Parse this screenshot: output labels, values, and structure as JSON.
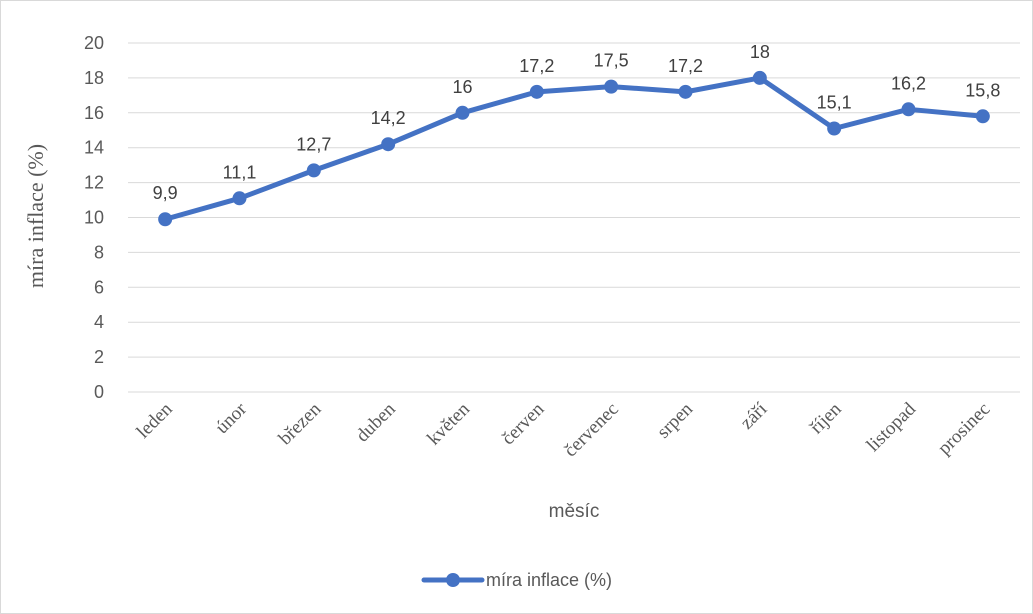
{
  "chart_data": {
    "type": "line",
    "title": "",
    "xlabel": "měsíc",
    "ylabel": "míra inflace (%)",
    "ylim": [
      0,
      20
    ],
    "yticks": [
      0,
      2,
      4,
      6,
      8,
      10,
      12,
      14,
      16,
      18,
      20
    ],
    "grid": "horizontal",
    "legend_position": "bottom",
    "categories": [
      "leden",
      "únor",
      "březen",
      "duben",
      "květen",
      "červen",
      "červenec",
      "srpen",
      "září",
      "říjen",
      "listopad",
      "prosinec"
    ],
    "series": [
      {
        "name": "míra inflace (%)",
        "color": "#4472c4",
        "values": [
          9.9,
          11.1,
          12.7,
          14.2,
          16,
          17.2,
          17.5,
          17.2,
          18,
          15.1,
          16.2,
          15.8
        ],
        "labels": [
          "9,9",
          "11,1",
          "12,7",
          "14,2",
          "16",
          "17,2",
          "17,5",
          "17,2",
          "18",
          "15,1",
          "16,2",
          "15,8"
        ]
      }
    ]
  }
}
